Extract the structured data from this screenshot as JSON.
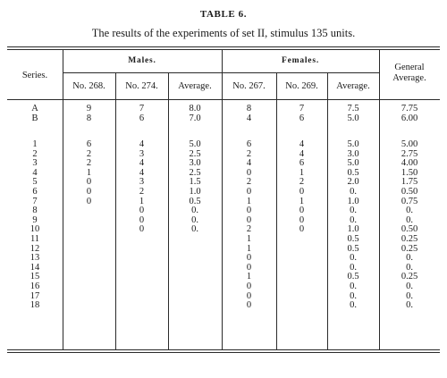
{
  "title": "TABLE 6.",
  "subtitle": "The results of the experiments of set II, stimulus 135 units.",
  "header": {
    "series": "Series.",
    "males": "Males.",
    "females": "Females.",
    "general_average": [
      "General",
      "Average."
    ],
    "cols": [
      "No. 268.",
      "No. 274.",
      "Average.",
      "No. 267.",
      "No. 269.",
      "Average."
    ]
  },
  "letter_rows": {
    "series": [
      "A",
      "B"
    ],
    "m268": [
      "9",
      "8"
    ],
    "m274": [
      "7",
      "6"
    ],
    "m_avg": [
      "8.0",
      "7.0"
    ],
    "f267": [
      "8",
      "4"
    ],
    "f269": [
      "7",
      "6"
    ],
    "f_avg": [
      "7.5",
      "5.0"
    ],
    "general": [
      "7.75",
      "6.00"
    ]
  },
  "numbered_rows": {
    "series": [
      "1",
      "2",
      "3",
      "4",
      "5",
      "6",
      "7",
      "8",
      "9",
      "10",
      "11",
      "12",
      "13",
      "14",
      "15",
      "16",
      "17",
      "18"
    ],
    "m268": [
      "6",
      "2",
      "2",
      "1",
      "0",
      "0",
      "0"
    ],
    "m274": [
      "4",
      "3",
      "4",
      "4",
      "3",
      "2",
      "1",
      "0",
      "0",
      "0"
    ],
    "m_avg": [
      "5.0",
      "2.5",
      "3.0",
      "2.5",
      "1.5",
      "1.0",
      "0.5",
      "0.",
      "0.",
      "0."
    ],
    "f267": [
      "6",
      "2",
      "4",
      "0",
      "2",
      "0",
      "1",
      "0",
      "0",
      "2",
      "1",
      "1",
      "0",
      "0",
      "1",
      "0",
      "0",
      "0"
    ],
    "f269": [
      "4",
      "4",
      "6",
      "1",
      "2",
      "0",
      "1",
      "0",
      "0",
      "0"
    ],
    "f_avg": [
      "5.0",
      "3.0",
      "5.0",
      "0.5",
      "2.0",
      "0.",
      "1.0",
      "0.",
      "0.",
      "1.0",
      "0.5",
      "0.5",
      "0.",
      "0.",
      "0.5",
      "0.",
      "0.",
      "0."
    ],
    "general": [
      "5.00",
      "2.75",
      "4.00",
      "1.50",
      "1.75",
      "0.50",
      "0.75",
      "0.",
      "0.",
      "0.50",
      "0.25",
      "0.25",
      "0.",
      "0.",
      "0.25",
      "0.",
      "0.",
      "0."
    ]
  }
}
